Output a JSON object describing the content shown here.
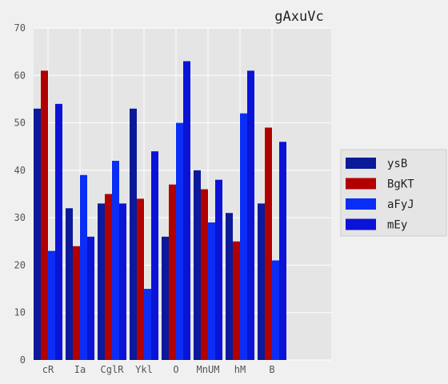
{
  "chart_data": {
    "type": "bar",
    "title": "gAxuVc",
    "categories": [
      "cR",
      "Ia",
      "CglR",
      "Ykl",
      "O",
      "MnUM",
      "hM",
      "B"
    ],
    "series": [
      {
        "name": "ysB",
        "color": "#0b1a99",
        "values": [
          53,
          32,
          33,
          53,
          26,
          40,
          31,
          33
        ]
      },
      {
        "name": "BgKT",
        "color": "#b20000",
        "values": [
          61,
          24,
          35,
          34,
          37,
          36,
          25,
          49
        ]
      },
      {
        "name": "aFyJ",
        "color": "#0a2ef5",
        "values": [
          23,
          39,
          42,
          15,
          50,
          29,
          52,
          21
        ]
      },
      {
        "name": "mEy",
        "color": "#0b13d6",
        "values": [
          54,
          26,
          33,
          44,
          63,
          38,
          61,
          46
        ]
      }
    ],
    "ylim": [
      0,
      70
    ],
    "yticks": [
      0,
      10,
      20,
      30,
      40,
      50,
      60,
      70
    ],
    "xlim": [
      0,
      9.3
    ],
    "grid": true,
    "legend_position": "right"
  }
}
